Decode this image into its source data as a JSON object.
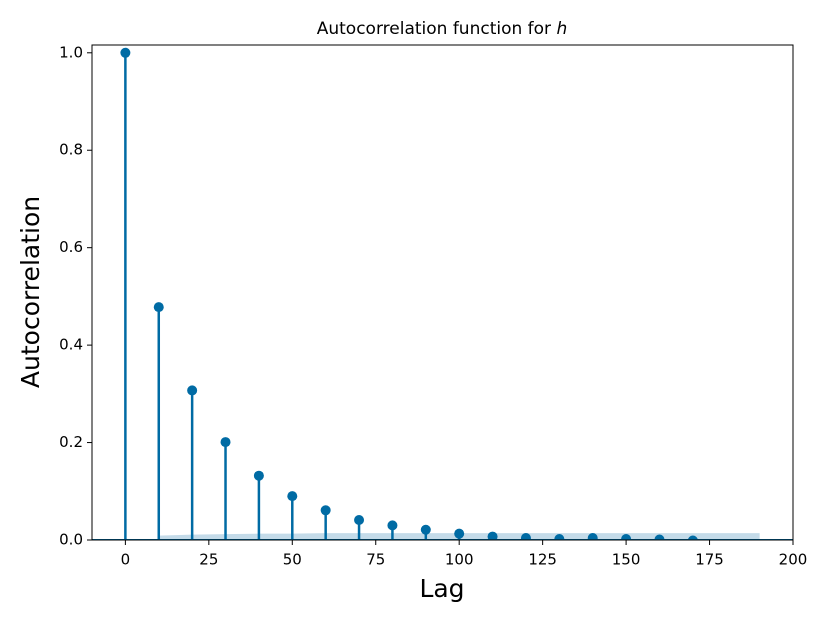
{
  "chart_data": {
    "type": "stem",
    "title": "Autocorrelation function for",
    "title_variable": "h",
    "x_label": "Lag",
    "y_label": "Autocorrelation",
    "x": [
      0,
      10,
      20,
      30,
      40,
      50,
      60,
      70,
      80,
      90,
      100,
      110,
      120,
      130,
      140,
      150,
      160,
      170
    ],
    "values": [
      1.0,
      0.478,
      0.307,
      0.201,
      0.132,
      0.09,
      0.061,
      0.041,
      0.03,
      0.021,
      0.013,
      0.007,
      0.004,
      0.002,
      0.004,
      0.002,
      0.001,
      -0.001
    ],
    "color": "#006ba4",
    "confidence_band": {
      "color": "#b5d2e4",
      "x": [
        10,
        20,
        30,
        40,
        50,
        60,
        70,
        80,
        90,
        100,
        110,
        120,
        130,
        140,
        150,
        160,
        170,
        180,
        190
      ],
      "upper": [
        0.009,
        0.011,
        0.012,
        0.013,
        0.013,
        0.014,
        0.014,
        0.014,
        0.014,
        0.014,
        0.014,
        0.014,
        0.014,
        0.014,
        0.014,
        0.014,
        0.014,
        0.014,
        0.014
      ],
      "lower": [
        -0.009,
        -0.011,
        -0.012,
        -0.013,
        -0.013,
        -0.014,
        -0.014,
        -0.014,
        -0.014,
        -0.014,
        -0.014,
        -0.014,
        -0.014,
        -0.014,
        -0.014,
        -0.014,
        -0.014,
        -0.014,
        -0.014
      ]
    },
    "xlim": [
      -10,
      200
    ],
    "ylim": [
      0,
      1.016
    ],
    "xticks": [
      0,
      25,
      50,
      75,
      100,
      125,
      150,
      175,
      200
    ],
    "yticks": [
      {
        "value": 0,
        "label": "0.0"
      },
      0.2,
      0.4,
      0.6,
      0.8,
      {
        "value": 1,
        "label": "1.0"
      }
    ]
  }
}
